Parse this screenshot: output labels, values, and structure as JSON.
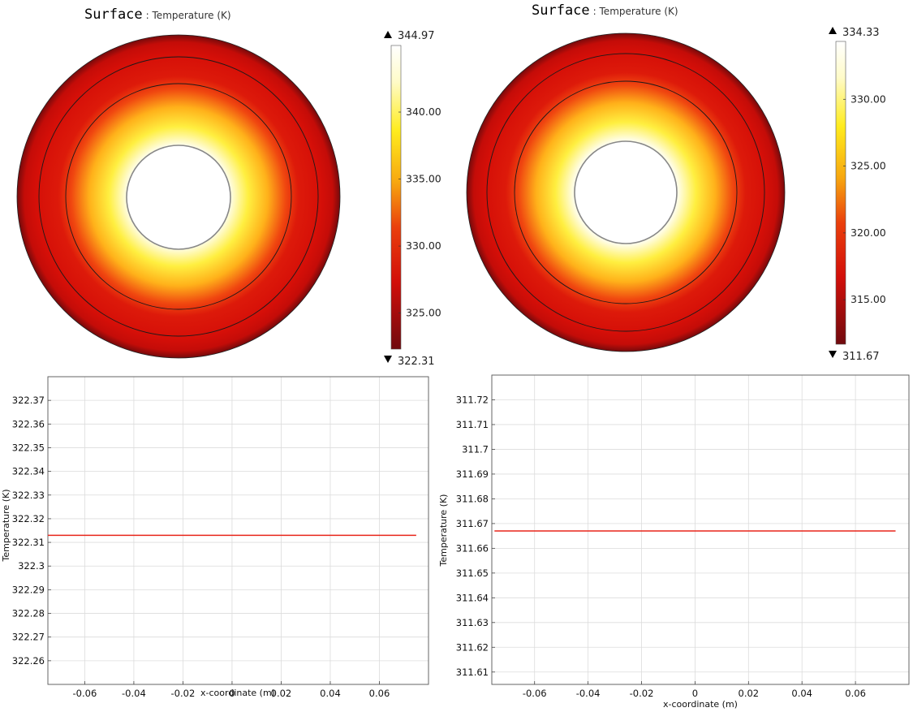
{
  "chart_data": [
    {
      "type": "heatmap",
      "title": "Surface",
      "subtitle": ": Temperature (K)",
      "colorbar": {
        "max": 344.97,
        "min": 322.31,
        "ticks": [
          "340.00",
          "335.00",
          "330.00",
          "325.00"
        ],
        "tick_values": [
          340,
          335,
          330,
          325
        ]
      }
    },
    {
      "type": "heatmap",
      "title": "Surface",
      "subtitle": ": Temperature (K)",
      "colorbar": {
        "max": 334.33,
        "min": 311.67,
        "ticks": [
          "330.00",
          "325.00",
          "320.00",
          "315.00"
        ],
        "tick_values": [
          330,
          325,
          320,
          315
        ]
      }
    },
    {
      "type": "line",
      "xlabel": "x-coordinate (m)",
      "ylabel": "Temperature (K)",
      "xlim": [
        -0.075,
        0.08
      ],
      "ylim": [
        322.25,
        322.38
      ],
      "x_ticks": [
        "-0.06",
        "-0.04",
        "-0.02",
        "0",
        "0.02",
        "0.04",
        "0.06"
      ],
      "x_tick_values": [
        -0.06,
        -0.04,
        -0.02,
        0,
        0.02,
        0.04,
        0.06
      ],
      "y_ticks": [
        "322.37",
        "322.36",
        "322.35",
        "322.34",
        "322.33",
        "322.32",
        "322.31",
        "322.3",
        "322.29",
        "322.28",
        "322.27",
        "322.26"
      ],
      "y_tick_values": [
        322.37,
        322.36,
        322.35,
        322.34,
        322.33,
        322.32,
        322.31,
        322.3,
        322.29,
        322.28,
        322.27,
        322.26
      ],
      "grid": true,
      "series": [
        {
          "color": "#e8251a",
          "x": [
            -0.075,
            0.075
          ],
          "y": [
            322.313,
            322.313
          ]
        }
      ]
    },
    {
      "type": "line",
      "xlabel": "x-coordinate (m)",
      "ylabel": "Temperature (K)",
      "xlim": [
        -0.076,
        0.08
      ],
      "ylim": [
        311.605,
        311.73
      ],
      "x_ticks": [
        "-0.06",
        "-0.04",
        "-0.02",
        "0",
        "0.02",
        "0.04",
        "0.06"
      ],
      "x_tick_values": [
        -0.06,
        -0.04,
        -0.02,
        0,
        0.02,
        0.04,
        0.06
      ],
      "y_ticks": [
        "311.72",
        "311.71",
        "311.7",
        "311.69",
        "311.68",
        "311.67",
        "311.66",
        "311.65",
        "311.64",
        "311.63",
        "311.62",
        "311.61"
      ],
      "y_tick_values": [
        311.72,
        311.71,
        311.7,
        311.69,
        311.68,
        311.67,
        311.66,
        311.65,
        311.64,
        311.63,
        311.62,
        311.61
      ],
      "grid": true,
      "series": [
        {
          "color": "#e8251a",
          "x": [
            -0.075,
            0.075
          ],
          "y": [
            311.667,
            311.667
          ]
        }
      ]
    }
  ]
}
